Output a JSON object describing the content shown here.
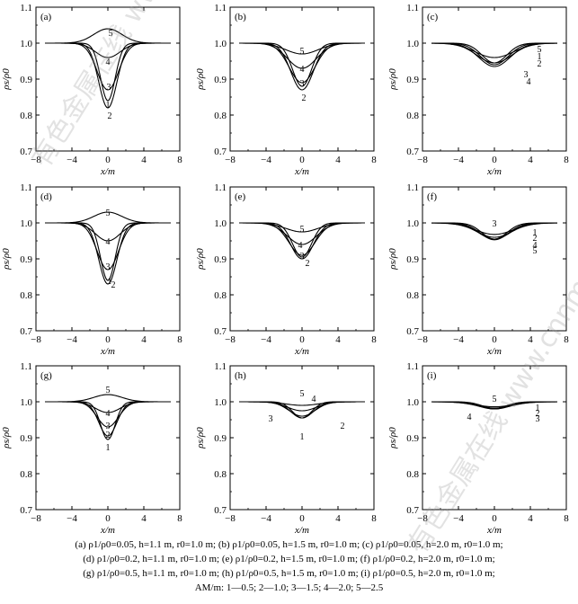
{
  "watermark": "有色金属在线 www.cnnmol.com",
  "caption_lines": [
    "(a) ρ1/ρ0=0.05, h=1.1 m, r0=1.0 m; (b) ρ1/ρ0=0.05, h=1.5 m, r0=1.0 m; (c) ρ1/ρ0=0.05, h=2.0 m, r0=1.0 m;",
    "(d) ρ1/ρ0=0.2, h=1.1 m, r0=1.0 m; (e) ρ1/ρ0=0.2, h=1.5 m, r0=1.0 m; (f) ρ1/ρ0=0.2, h=2.0 m, r0=1.0 m;",
    "(g) ρ1/ρ0=0.5, h=1.1 m, r0=1.0 m; (h) ρ1/ρ0=0.5, h=1.5 m, r0=1.0 m; (i) ρ1/ρ0=0.5, h=2.0 m, r0=1.0 m;",
    "AM/m: 1—0.5; 2—1.0; 3—1.5; 4—2.0; 5—2.5"
  ],
  "chart_data": [
    {
      "panel": "(a)",
      "type": "line",
      "xlabel": "x/m",
      "ylabel": "ρs/ρ0",
      "xlim": [
        -8,
        8
      ],
      "ylim": [
        0.7,
        1.1
      ],
      "xticks": [
        -8,
        -4,
        0,
        4,
        8
      ],
      "yticks": [
        0.7,
        0.8,
        0.9,
        1.0,
        1.1
      ],
      "series": [
        {
          "name": "1",
          "y_at_center": 0.84,
          "half_width": 1.3
        },
        {
          "name": "2",
          "y_at_center": 0.82,
          "half_width": 1.6
        },
        {
          "name": "3",
          "y_at_center": 0.87,
          "half_width": 1.9
        },
        {
          "name": "4",
          "y_at_center": 0.96,
          "half_width": 2.2
        },
        {
          "name": "5",
          "y_at_center": 1.04,
          "half_width": 2.5
        }
      ],
      "labels": [
        {
          "text": "5",
          "x": 0.3,
          "y": 1.03
        },
        {
          "text": "4",
          "x": 0.0,
          "y": 0.95
        },
        {
          "text": "3",
          "x": 0.1,
          "y": 0.88
        },
        {
          "text": "1",
          "x": 0.0,
          "y": 0.83
        },
        {
          "text": "2",
          "x": 0.2,
          "y": 0.8
        }
      ]
    },
    {
      "panel": "(b)",
      "type": "line",
      "xlabel": "x/m",
      "ylabel": "ρs/ρ0",
      "xlim": [
        -8,
        8
      ],
      "ylim": [
        0.7,
        1.1
      ],
      "xticks": [
        -8,
        -4,
        0,
        4,
        8
      ],
      "yticks": [
        0.7,
        0.8,
        0.9,
        1.0,
        1.1
      ],
      "series": [
        {
          "name": "1",
          "y_at_center": 0.88,
          "half_width": 1.7
        },
        {
          "name": "2",
          "y_at_center": 0.87,
          "half_width": 2.0
        },
        {
          "name": "3",
          "y_at_center": 0.89,
          "half_width": 2.3
        },
        {
          "name": "4",
          "y_at_center": 0.93,
          "half_width": 2.6
        },
        {
          "name": "5",
          "y_at_center": 0.97,
          "half_width": 2.9
        }
      ],
      "labels": [
        {
          "text": "5",
          "x": 0.0,
          "y": 0.98
        },
        {
          "text": "4",
          "x": 0.0,
          "y": 0.93
        },
        {
          "text": "3",
          "x": 0.0,
          "y": 0.89
        },
        {
          "text": "2",
          "x": 0.2,
          "y": 0.85
        }
      ]
    },
    {
      "panel": "(c)",
      "type": "line",
      "xlabel": "x/m",
      "ylabel": "ρs/ρ0",
      "xlim": [
        -8,
        8
      ],
      "ylim": [
        0.7,
        1.1
      ],
      "xticks": [
        -8,
        -4,
        0,
        4,
        8
      ],
      "yticks": [
        0.7,
        0.8,
        0.9,
        1.0,
        1.1
      ],
      "series": [
        {
          "name": "1",
          "y_at_center": 0.945,
          "half_width": 2.2
        },
        {
          "name": "2",
          "y_at_center": 0.94,
          "half_width": 2.5
        },
        {
          "name": "3",
          "y_at_center": 0.935,
          "half_width": 2.8
        },
        {
          "name": "4",
          "y_at_center": 0.945,
          "half_width": 3.1
        },
        {
          "name": "5",
          "y_at_center": 0.96,
          "half_width": 3.4
        }
      ],
      "labels": [
        {
          "text": "5",
          "x": 5.0,
          "y": 0.985
        },
        {
          "text": "1",
          "x": 5.0,
          "y": 0.965
        },
        {
          "text": "2",
          "x": 5.0,
          "y": 0.945
        },
        {
          "text": "3",
          "x": 3.5,
          "y": 0.915
        },
        {
          "text": "4",
          "x": 3.8,
          "y": 0.895
        }
      ]
    },
    {
      "panel": "(d)",
      "type": "line",
      "xlabel": "x/m",
      "ylabel": "ρs/ρ0",
      "xlim": [
        -8,
        8
      ],
      "ylim": [
        0.7,
        1.1
      ],
      "xticks": [
        -8,
        -4,
        0,
        4,
        8
      ],
      "yticks": [
        0.7,
        0.8,
        0.9,
        1.0,
        1.1
      ],
      "series": [
        {
          "name": "1",
          "y_at_center": 0.84,
          "half_width": 1.3
        },
        {
          "name": "2",
          "y_at_center": 0.83,
          "half_width": 1.6
        },
        {
          "name": "3",
          "y_at_center": 0.87,
          "half_width": 1.9
        },
        {
          "name": "4",
          "y_at_center": 0.95,
          "half_width": 2.2
        },
        {
          "name": "5",
          "y_at_center": 1.03,
          "half_width": 2.5
        }
      ],
      "labels": [
        {
          "text": "5",
          "x": 0.0,
          "y": 1.03
        },
        {
          "text": "4",
          "x": 0.0,
          "y": 0.95
        },
        {
          "text": "3",
          "x": 0.0,
          "y": 0.88
        },
        {
          "text": "1",
          "x": 0.2,
          "y": 0.84
        },
        {
          "text": "2",
          "x": 0.6,
          "y": 0.83
        }
      ]
    },
    {
      "panel": "(e)",
      "type": "line",
      "xlabel": "x/m",
      "ylabel": "ρs/ρ0",
      "xlim": [
        -8,
        8
      ],
      "ylim": [
        0.7,
        1.1
      ],
      "xticks": [
        -8,
        -4,
        0,
        4,
        8
      ],
      "yticks": [
        0.7,
        0.8,
        0.9,
        1.0,
        1.1
      ],
      "series": [
        {
          "name": "1",
          "y_at_center": 0.905,
          "half_width": 1.7
        },
        {
          "name": "2",
          "y_at_center": 0.9,
          "half_width": 2.0
        },
        {
          "name": "3",
          "y_at_center": 0.91,
          "half_width": 2.3
        },
        {
          "name": "4",
          "y_at_center": 0.94,
          "half_width": 2.6
        },
        {
          "name": "5",
          "y_at_center": 0.975,
          "half_width": 2.9
        }
      ],
      "labels": [
        {
          "text": "5",
          "x": 0.0,
          "y": 0.985
        },
        {
          "text": "4",
          "x": -0.2,
          "y": 0.94
        },
        {
          "text": "3",
          "x": 0.0,
          "y": 0.91
        },
        {
          "text": "2",
          "x": 0.6,
          "y": 0.89
        }
      ]
    },
    {
      "panel": "(f)",
      "type": "line",
      "xlabel": "x/m",
      "ylabel": "ρs/ρ0",
      "xlim": [
        -8,
        8
      ],
      "ylim": [
        0.7,
        1.1
      ],
      "xticks": [
        -8,
        -4,
        0,
        4,
        8
      ],
      "yticks": [
        0.7,
        0.8,
        0.9,
        1.0,
        1.1
      ],
      "series": [
        {
          "name": "1",
          "y_at_center": 0.955,
          "half_width": 2.2
        },
        {
          "name": "2",
          "y_at_center": 0.953,
          "half_width": 2.5
        },
        {
          "name": "3",
          "y_at_center": 0.955,
          "half_width": 2.8
        },
        {
          "name": "4",
          "y_at_center": 0.96,
          "half_width": 3.1
        },
        {
          "name": "5",
          "y_at_center": 0.968,
          "half_width": 3.4
        }
      ],
      "labels": [
        {
          "text": "3",
          "x": 0.0,
          "y": 1.0
        },
        {
          "text": "1",
          "x": 4.5,
          "y": 0.975
        },
        {
          "text": "2",
          "x": 4.5,
          "y": 0.96
        },
        {
          "text": "4",
          "x": 4.5,
          "y": 0.94
        },
        {
          "text": "5",
          "x": 4.5,
          "y": 0.925
        }
      ]
    },
    {
      "panel": "(g)",
      "type": "line",
      "xlabel": "x/m",
      "ylabel": "ρs/ρ0",
      "xlim": [
        -8,
        8
      ],
      "ylim": [
        0.7,
        1.1
      ],
      "xticks": [
        -8,
        -4,
        0,
        4,
        8
      ],
      "yticks": [
        0.7,
        0.8,
        0.9,
        1.0,
        1.1
      ],
      "series": [
        {
          "name": "1",
          "y_at_center": 0.895,
          "half_width": 1.3
        },
        {
          "name": "2",
          "y_at_center": 0.905,
          "half_width": 1.6
        },
        {
          "name": "3",
          "y_at_center": 0.93,
          "half_width": 1.9
        },
        {
          "name": "4",
          "y_at_center": 0.97,
          "half_width": 2.2
        },
        {
          "name": "5",
          "y_at_center": 1.02,
          "half_width": 2.5
        }
      ],
      "labels": [
        {
          "text": "5",
          "x": 0.0,
          "y": 1.035
        },
        {
          "text": "4",
          "x": 0.0,
          "y": 0.97
        },
        {
          "text": "3",
          "x": 0.0,
          "y": 0.935
        },
        {
          "text": "2",
          "x": 0.0,
          "y": 0.91
        },
        {
          "text": "1",
          "x": 0.0,
          "y": 0.875
        }
      ]
    },
    {
      "panel": "(h)",
      "type": "line",
      "xlabel": "x/m",
      "ylabel": "ρs/ρ0",
      "xlim": [
        -8,
        8
      ],
      "ylim": [
        0.7,
        1.1
      ],
      "xticks": [
        -8,
        -4,
        0,
        4,
        8
      ],
      "yticks": [
        0.7,
        0.8,
        0.9,
        1.0,
        1.1
      ],
      "series": [
        {
          "name": "1",
          "y_at_center": 0.955,
          "half_width": 1.7
        },
        {
          "name": "2",
          "y_at_center": 0.955,
          "half_width": 2.0
        },
        {
          "name": "3",
          "y_at_center": 0.96,
          "half_width": 2.3
        },
        {
          "name": "4",
          "y_at_center": 0.975,
          "half_width": 2.6
        },
        {
          "name": "5",
          "y_at_center": 0.99,
          "half_width": 2.9
        }
      ],
      "labels": [
        {
          "text": "5",
          "x": 0.0,
          "y": 1.025
        },
        {
          "text": "4",
          "x": 1.3,
          "y": 1.01
        },
        {
          "text": "3",
          "x": -3.5,
          "y": 0.955
        },
        {
          "text": "1",
          "x": 0.0,
          "y": 0.905
        },
        {
          "text": "2",
          "x": 4.5,
          "y": 0.935
        }
      ]
    },
    {
      "panel": "(i)",
      "type": "line",
      "xlabel": "x/m",
      "ylabel": "ρs/ρ0",
      "xlim": [
        -8,
        8
      ],
      "ylim": [
        0.7,
        1.1
      ],
      "xticks": [
        -8,
        -4,
        0,
        4,
        8
      ],
      "yticks": [
        0.7,
        0.8,
        0.9,
        1.0,
        1.1
      ],
      "series": [
        {
          "name": "1",
          "y_at_center": 0.982,
          "half_width": 2.2
        },
        {
          "name": "2",
          "y_at_center": 0.98,
          "half_width": 2.5
        },
        {
          "name": "3",
          "y_at_center": 0.98,
          "half_width": 2.8
        },
        {
          "name": "4",
          "y_at_center": 0.982,
          "half_width": 3.1
        },
        {
          "name": "5",
          "y_at_center": 0.986,
          "half_width": 3.4
        }
      ],
      "labels": [
        {
          "text": "5",
          "x": 0.0,
          "y": 1.01
        },
        {
          "text": "4",
          "x": -2.8,
          "y": 0.96
        },
        {
          "text": "1",
          "x": 4.8,
          "y": 0.985
        },
        {
          "text": "2",
          "x": 4.8,
          "y": 0.97
        },
        {
          "text": "3",
          "x": 4.8,
          "y": 0.955
        }
      ]
    }
  ]
}
